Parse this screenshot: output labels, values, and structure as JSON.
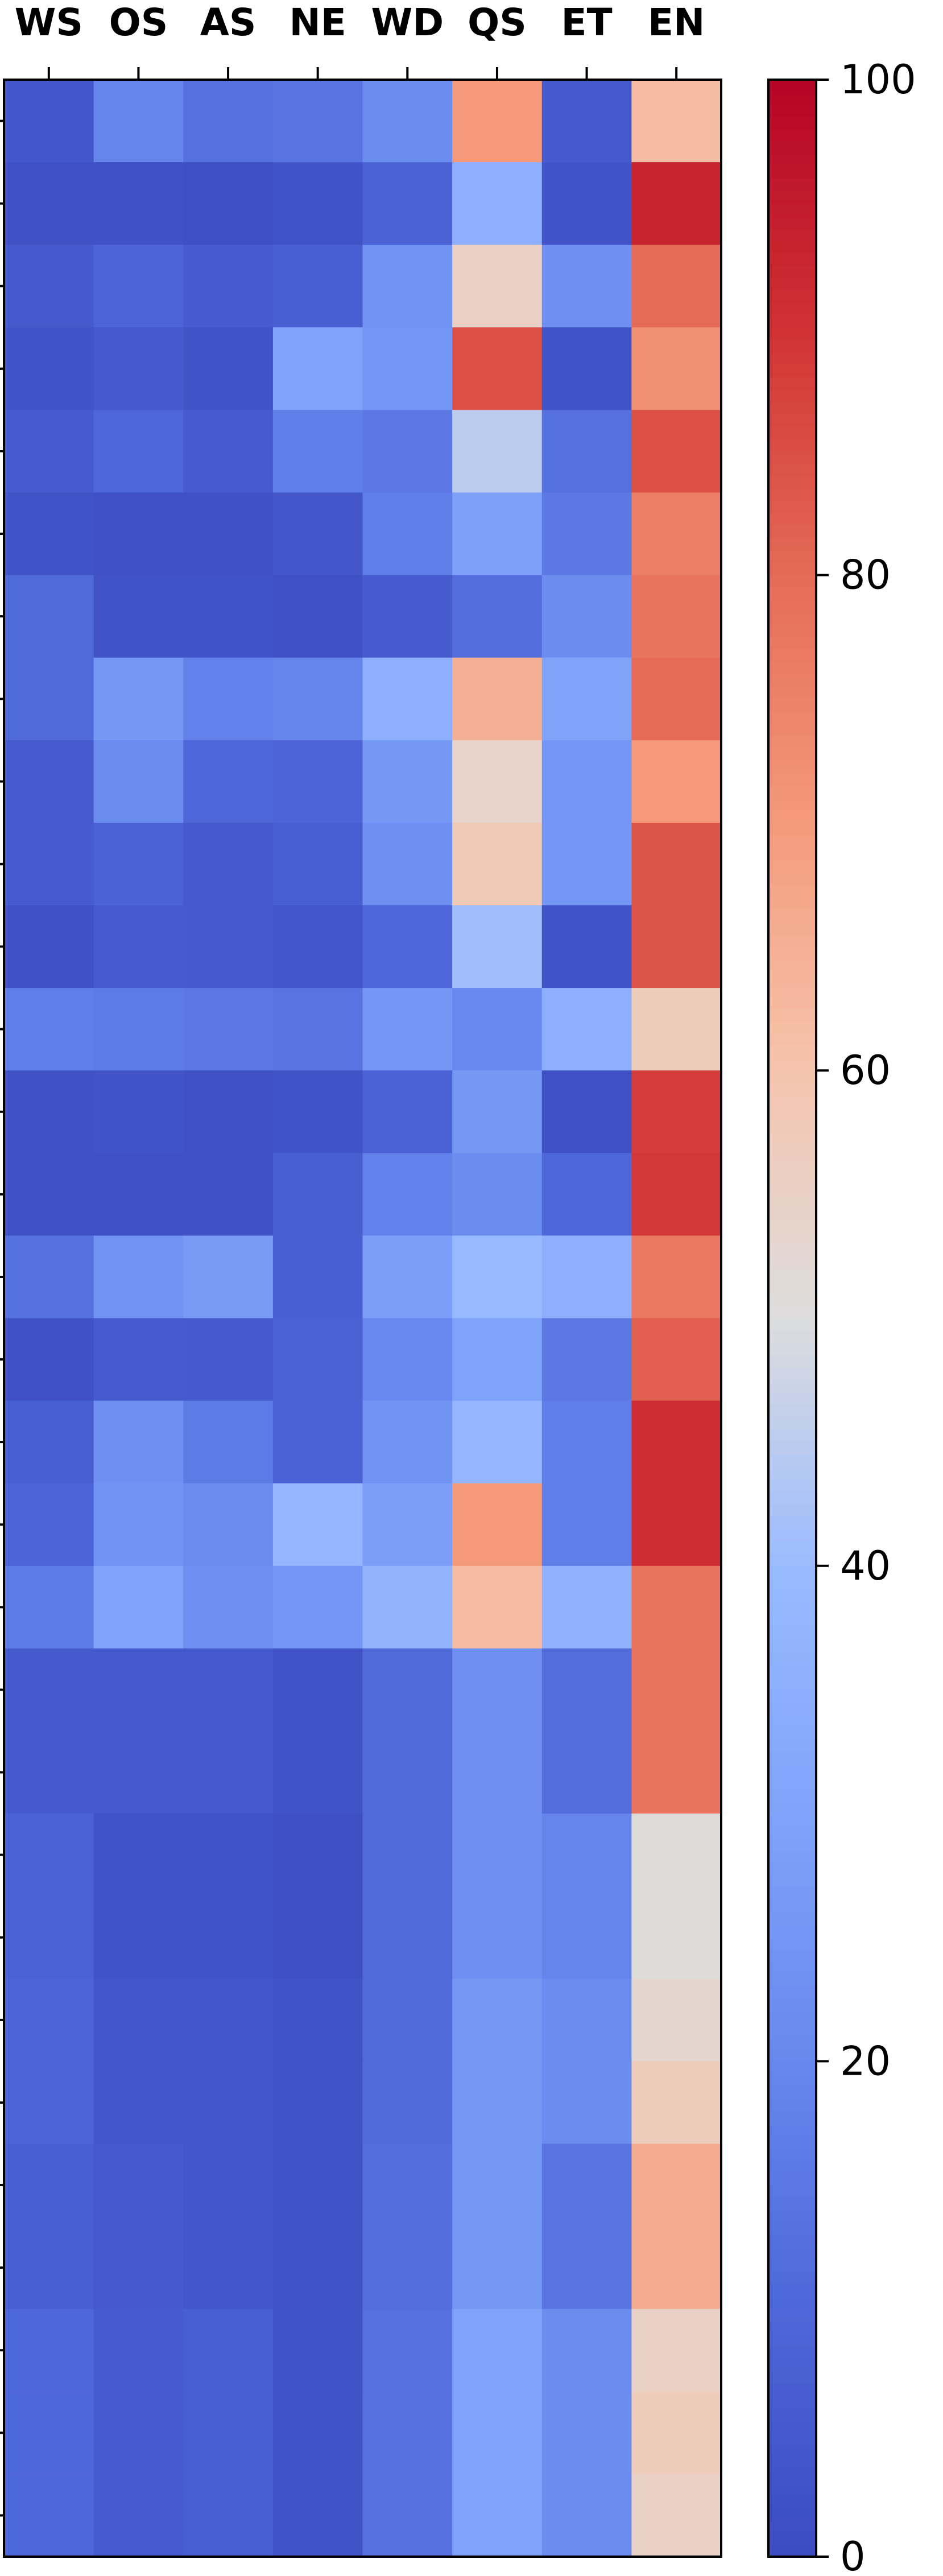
{
  "chart_data": {
    "type": "heatmap",
    "title": "",
    "xlabel": "",
    "ylabel": "",
    "columns": [
      "WS",
      "OS",
      "AS",
      "NE",
      "WD",
      "QS",
      "ET",
      "EN"
    ],
    "rows": 30,
    "values": [
      [
        4,
        19,
        13,
        14,
        22,
        70,
        5,
        62
      ],
      [
        2,
        2,
        1,
        3,
        8,
        35,
        3,
        93
      ],
      [
        5,
        9,
        6,
        7,
        24,
        55,
        23,
        80
      ],
      [
        3,
        5,
        3,
        30,
        25,
        85,
        3,
        72
      ],
      [
        6,
        10,
        6,
        17,
        15,
        45,
        13,
        85
      ],
      [
        3,
        2,
        2,
        4,
        17,
        29,
        15,
        76
      ],
      [
        11,
        3,
        3,
        2,
        6,
        12,
        22,
        78
      ],
      [
        11,
        26,
        18,
        19,
        35,
        65,
        30,
        80
      ],
      [
        6,
        21,
        10,
        9,
        26,
        54,
        25,
        70
      ],
      [
        6,
        8,
        5,
        7,
        23,
        58,
        25,
        84
      ],
      [
        2,
        6,
        5,
        4,
        10,
        41,
        3,
        84
      ],
      [
        17,
        16,
        15,
        14,
        25,
        20,
        35,
        57
      ],
      [
        2,
        3,
        2,
        3,
        8,
        26,
        2,
        88
      ],
      [
        2,
        2,
        2,
        7,
        18,
        22,
        10,
        89
      ],
      [
        13,
        24,
        27,
        7,
        28,
        39,
        35,
        77
      ],
      [
        2,
        6,
        5,
        8,
        20,
        30,
        15,
        82
      ],
      [
        7,
        23,
        16,
        8,
        24,
        38,
        17,
        91
      ],
      [
        9,
        24,
        21,
        38,
        28,
        70,
        17,
        91
      ],
      [
        16,
        30,
        23,
        25,
        37,
        62,
        36,
        78
      ],
      [
        5,
        5,
        5,
        3,
        11,
        23,
        12,
        78
      ],
      [
        5,
        5,
        5,
        3,
        11,
        23,
        12,
        78
      ],
      [
        8,
        3,
        3,
        1,
        11,
        23,
        19,
        51
      ],
      [
        8,
        3,
        3,
        1,
        11,
        23,
        19,
        51
      ],
      [
        9,
        4,
        4,
        3,
        11,
        26,
        22,
        53
      ],
      [
        9,
        4,
        4,
        3,
        11,
        26,
        22,
        57
      ],
      [
        7,
        5,
        4,
        3,
        12,
        26,
        14,
        66
      ],
      [
        7,
        5,
        4,
        3,
        12,
        26,
        14,
        66
      ],
      [
        10,
        6,
        7,
        3,
        13,
        30,
        22,
        55
      ],
      [
        10,
        6,
        7,
        3,
        13,
        30,
        22,
        57
      ],
      [
        10,
        6,
        7,
        3,
        13,
        30,
        22,
        55
      ]
    ],
    "colorbar": {
      "range": [
        0,
        100
      ],
      "ticks": [
        0,
        20,
        40,
        60,
        80,
        100
      ],
      "colormap": "coolwarm"
    },
    "grid": false,
    "legend": "colorbar-right"
  }
}
